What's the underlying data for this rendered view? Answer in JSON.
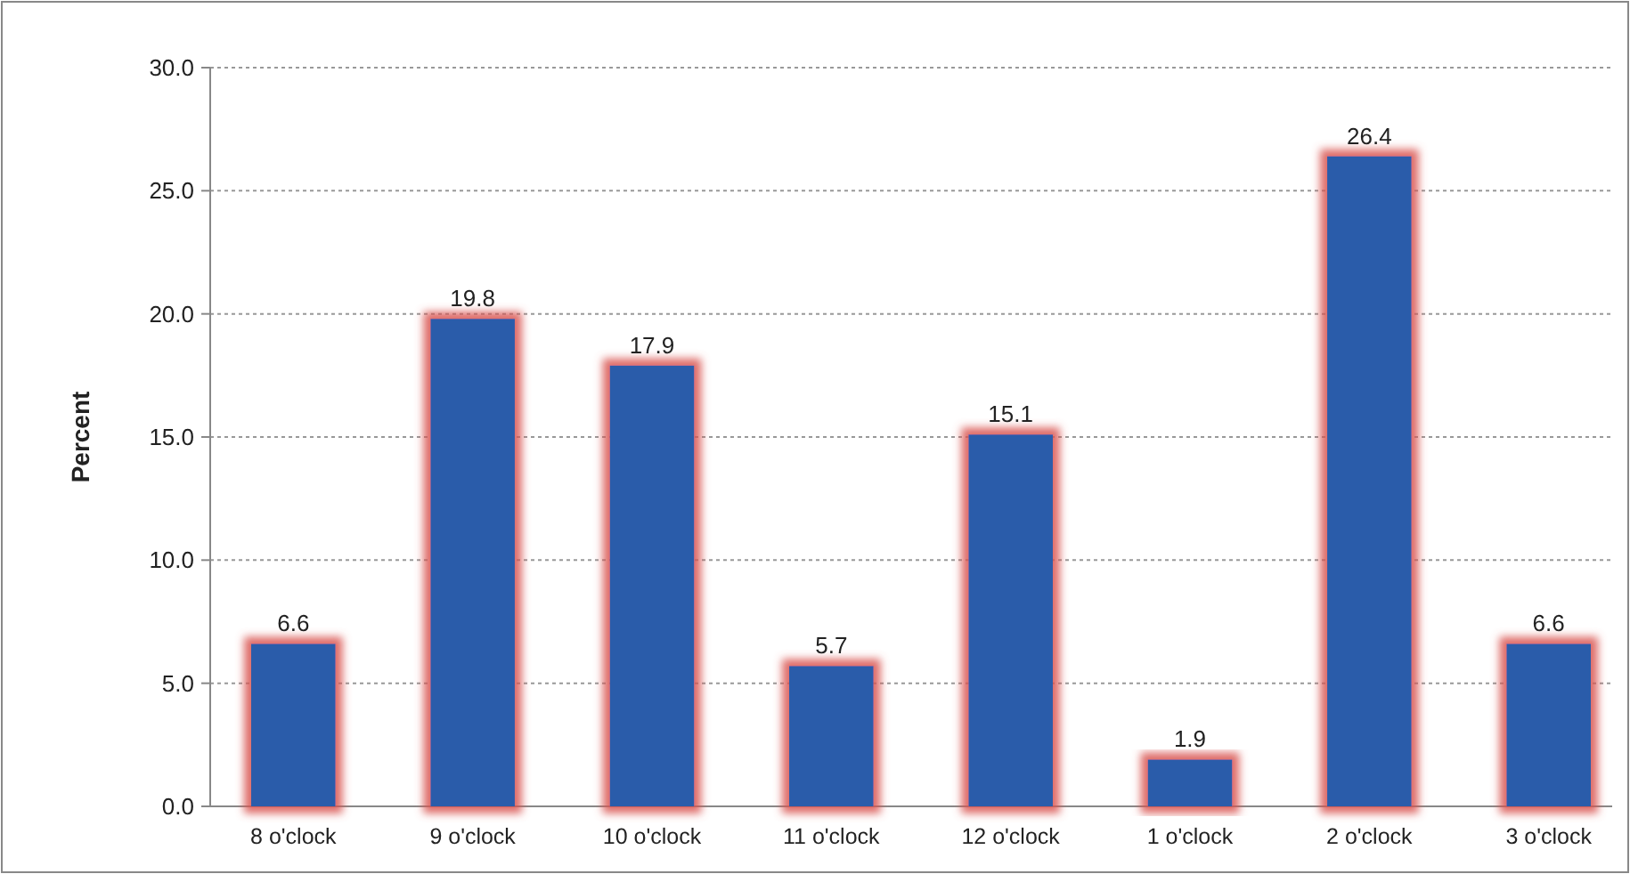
{
  "chart_data": {
    "type": "bar",
    "ylabel": "Percent",
    "categories": [
      "8 o'clock",
      "9 o'clock",
      "10 o'clock",
      "11 o'clock",
      "12 o'clock",
      "1 o'clock",
      "2 o'clock",
      "3 o'clock"
    ],
    "values": [
      6.6,
      19.8,
      17.9,
      5.7,
      15.1,
      1.9,
      26.4,
      6.6
    ],
    "color": "#2a5caa",
    "ylim": [
      0,
      30
    ],
    "yticks": [
      {
        "value": 0,
        "label": "0.0"
      },
      {
        "value": 5,
        "label": "5.0"
      },
      {
        "value": 10,
        "label": "10.0"
      },
      {
        "value": 15,
        "label": "15.0"
      },
      {
        "value": 20,
        "label": "20.0"
      },
      {
        "value": 25,
        "label": "25.0"
      },
      {
        "value": 30,
        "label": "30.0"
      }
    ],
    "grid": "y",
    "data_labels": true
  }
}
